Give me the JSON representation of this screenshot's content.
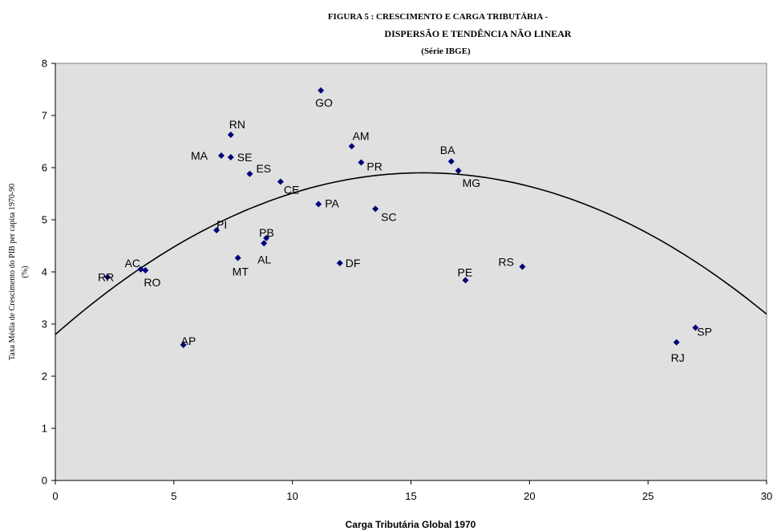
{
  "chart_data": {
    "type": "scatter",
    "title_lines": [
      "FIGURA 5 : CRESCIMENTO E CARGA TRIBUTÁRIA -",
      "DISPERSÃO E TENDÊNCIA NÃO LINEAR",
      "(Série IBGE)"
    ],
    "xlabel": "Carga Tributária  Global  1970",
    "ylabel_lines": [
      "Taxa Média de Crescimento do PIB per capita 1970-90",
      "(%)"
    ],
    "xlim": [
      0,
      30
    ],
    "ylim": [
      0,
      8
    ],
    "x_ticks": [
      "0",
      "5",
      "10",
      "15",
      "20",
      "25",
      "30"
    ],
    "y_ticks": [
      "0",
      "1",
      "2",
      "3",
      "4",
      "5",
      "6",
      "7",
      "8"
    ],
    "grid": false,
    "legend": "none",
    "plot_background": "#e0e0e0",
    "marker_color": "#00007b",
    "trend_color": "#000000",
    "points": [
      {
        "label": "RR",
        "x": 2.2,
        "y": 3.9
      },
      {
        "label": "AC",
        "x": 3.6,
        "y": 4.05
      },
      {
        "label": "RO",
        "x": 3.8,
        "y": 4.03
      },
      {
        "label": "AP",
        "x": 5.4,
        "y": 2.6
      },
      {
        "label": "PI",
        "x": 6.8,
        "y": 4.8
      },
      {
        "label": "MA",
        "x": 7.0,
        "y": 6.23
      },
      {
        "label": "SE",
        "x": 7.4,
        "y": 6.2
      },
      {
        "label": "RN",
        "x": 7.4,
        "y": 6.63
      },
      {
        "label": "MT",
        "x": 7.7,
        "y": 4.27
      },
      {
        "label": "ES",
        "x": 8.2,
        "y": 5.88
      },
      {
        "label": "AL",
        "x": 8.8,
        "y": 4.55
      },
      {
        "label": "PB",
        "x": 8.9,
        "y": 4.65
      },
      {
        "label": "CE",
        "x": 9.5,
        "y": 5.73
      },
      {
        "label": "PA",
        "x": 11.1,
        "y": 5.3
      },
      {
        "label": "GO",
        "x": 11.2,
        "y": 7.48
      },
      {
        "label": "DF",
        "x": 12.0,
        "y": 4.17
      },
      {
        "label": "AM",
        "x": 12.5,
        "y": 6.41
      },
      {
        "label": "PR",
        "x": 12.9,
        "y": 6.1
      },
      {
        "label": "SC",
        "x": 13.5,
        "y": 5.21
      },
      {
        "label": "BA",
        "x": 16.7,
        "y": 6.12
      },
      {
        "label": "MG",
        "x": 17.0,
        "y": 5.94
      },
      {
        "label": "PE",
        "x": 17.3,
        "y": 3.84
      },
      {
        "label": "RS",
        "x": 19.7,
        "y": 4.1
      },
      {
        "label": "RJ",
        "x": 26.2,
        "y": 2.65
      },
      {
        "label": "SP",
        "x": 27.0,
        "y": 2.93
      }
    ],
    "trend": {
      "type": "polynomial-2",
      "coefficients": [
        2.8,
        0.4,
        -0.0129
      ]
    }
  }
}
